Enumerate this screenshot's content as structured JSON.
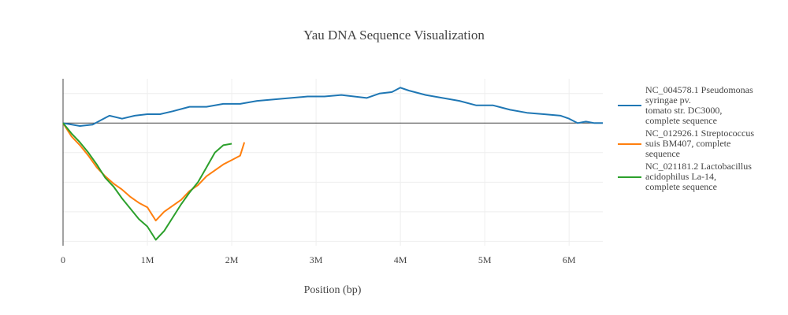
{
  "chart_data": {
    "type": "line",
    "title": "Yau DNA Sequence Visualization",
    "xlabel": "Position (bp)",
    "ylabel": "",
    "xlim": [
      0,
      6400000
    ],
    "ylim": [
      -83000,
      30000
    ],
    "x_ticks": [
      {
        "value": 0,
        "label": "0"
      },
      {
        "value": 1000000,
        "label": "1M"
      },
      {
        "value": 2000000,
        "label": "2M"
      },
      {
        "value": 3000000,
        "label": "3M"
      },
      {
        "value": 4000000,
        "label": "4M"
      },
      {
        "value": 5000000,
        "label": "5M"
      },
      {
        "value": 6000000,
        "label": "6M"
      }
    ],
    "y_gridlines": [
      20000,
      0,
      -20000,
      -40000,
      -60000,
      -80000
    ],
    "grid": true,
    "legend_position": "right",
    "series": [
      {
        "name": "NC_004578.1 Pseudomonas syringae pv. tomato str. DC3000, complete sequence",
        "name_lines": [
          "NC_004578.1 Pseudomonas",
          "syringae pv.",
          "tomato str. DC3000,",
          "complete sequence"
        ],
        "color": "#1f77b4",
        "x": [
          0,
          200000,
          350000,
          450000,
          550000,
          700000,
          850000,
          1000000,
          1150000,
          1300000,
          1500000,
          1700000,
          1900000,
          2100000,
          2300000,
          2500000,
          2700000,
          2900000,
          3100000,
          3300000,
          3450000,
          3600000,
          3750000,
          3900000,
          4000000,
          4100000,
          4300000,
          4500000,
          4700000,
          4900000,
          5100000,
          5300000,
          5500000,
          5700000,
          5900000,
          6000000,
          6100000,
          6200000,
          6300000,
          6400000
        ],
        "y": [
          0,
          -2000,
          -1000,
          2000,
          5000,
          3000,
          5000,
          6000,
          6000,
          8000,
          11000,
          11000,
          13000,
          13000,
          15000,
          16000,
          17000,
          18000,
          18000,
          19000,
          18000,
          17000,
          20000,
          21000,
          24000,
          22000,
          19000,
          17000,
          15000,
          12000,
          12000,
          9000,
          7000,
          6000,
          5000,
          3000,
          0,
          1000,
          0,
          0
        ]
      },
      {
        "name": "NC_012926.1 Streptococcus suis BM407, complete sequence",
        "name_lines": [
          "NC_012926.1 Streptococcus",
          "suis BM407, complete",
          "sequence"
        ],
        "color": "#ff7f0e",
        "x": [
          0,
          100000,
          200000,
          300000,
          400000,
          500000,
          600000,
          700000,
          800000,
          900000,
          1000000,
          1100000,
          1200000,
          1300000,
          1400000,
          1500000,
          1600000,
          1700000,
          1800000,
          1900000,
          2000000,
          2100000,
          2150000
        ],
        "y": [
          0,
          -9000,
          -15000,
          -22000,
          -30000,
          -36000,
          -41000,
          -45000,
          -50000,
          -54000,
          -57000,
          -66000,
          -60000,
          -56000,
          -52000,
          -46000,
          -42000,
          -36000,
          -32000,
          -28000,
          -25000,
          -22000,
          -13000
        ]
      },
      {
        "name": "NC_021181.2 Lactobacillus acidophilus La-14, complete sequence",
        "name_lines": [
          "NC_021181.2 Lactobacillus",
          "acidophilus La-14,",
          "complete sequence"
        ],
        "color": "#2ca02c",
        "x": [
          0,
          100000,
          200000,
          300000,
          400000,
          500000,
          600000,
          700000,
          800000,
          900000,
          1000000,
          1100000,
          1200000,
          1300000,
          1400000,
          1500000,
          1600000,
          1700000,
          1800000,
          1900000,
          2000000
        ],
        "y": [
          0,
          -7000,
          -13000,
          -20000,
          -28000,
          -37000,
          -43000,
          -51000,
          -58000,
          -65000,
          -70000,
          -79000,
          -73000,
          -64000,
          -55000,
          -47000,
          -40000,
          -30000,
          -20000,
          -15000,
          -14000
        ]
      }
    ]
  }
}
